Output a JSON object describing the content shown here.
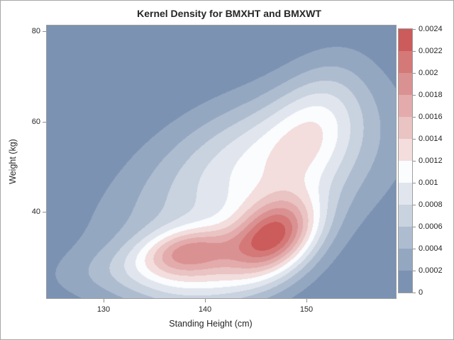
{
  "figure": {
    "background": "#ffffff",
    "border_color": "#a7a7a7",
    "text_color": "#262626",
    "axis_line_color": "#8f8f8f"
  },
  "chart_data": {
    "type": "filled_contour",
    "subtype": "bivariate_kernel_density",
    "title": "Kernel Density for BMXHT and BMXWT",
    "xlabel": "Standing Height (cm)",
    "ylabel": "Weight (kg)",
    "x_range": [
      124.4,
      158.8
    ],
    "y_range": [
      20.9,
      81.3
    ],
    "x_ticks": [
      130,
      140,
      150
    ],
    "x_tick_labels": [
      "130",
      "140",
      "150"
    ],
    "y_ticks": [
      40,
      60,
      80
    ],
    "y_tick_labels": [
      "40",
      "60",
      "80"
    ],
    "grid": false,
    "legend_position": "right",
    "levels": [
      0,
      0.0002,
      0.0004,
      0.0006,
      0.0008,
      0.001,
      0.0012,
      0.0014,
      0.0016,
      0.0018,
      0.002,
      0.0022,
      0.0024
    ],
    "level_labels": [
      "0",
      "0.0002",
      "0.0004",
      "0.0006",
      "0.0008",
      "0.001",
      "0.0012",
      "0.0014",
      "0.0016",
      "0.0018",
      "0.002",
      "0.0022",
      "0.0024"
    ],
    "band_colors": [
      "#7B92B2",
      "#94A7C1",
      "#AEBCD0",
      "#C9D2DF",
      "#E1E6EE",
      "#FAFCFE",
      "#F3DDDD",
      "#EAC3C3",
      "#E3ABAB",
      "#DA9191",
      "#D47878",
      "#CC5B5B"
    ],
    "peak_density": 0.0023,
    "peak_location": {
      "height_cm": 147,
      "weight_kg": 34.5
    },
    "secondary_mode": {
      "height_cm": 138.5,
      "weight_kg": 31.5
    },
    "density_model": {
      "form": "bivariate_gaussian_mixture",
      "components": [
        {
          "amplitude": 0.00178,
          "mean_x": 146.8,
          "mean_y": 34.5,
          "sigma_x": 3.0,
          "sigma_y": 6.0,
          "rho": 0.3
        },
        {
          "amplitude": 0.00095,
          "mean_x": 138.4,
          "mean_y": 31.6,
          "sigma_x": 3.2,
          "sigma_y": 3.6,
          "rho": 0.2
        },
        {
          "amplitude": 0.00075,
          "mean_x": 144.0,
          "mean_y": 44.0,
          "sigma_x": 9.5,
          "sigma_y": 13.5,
          "rho": 0.5
        },
        {
          "amplitude": 0.00055,
          "mean_x": 151.0,
          "mean_y": 60.0,
          "sigma_x": 3.4,
          "sigma_y": 10.0,
          "rho": 0.35
        },
        {
          "amplitude": 0.00021,
          "mean_x": 132.5,
          "mean_y": 27.5,
          "sigma_x": 5.5,
          "sigma_y": 4.0,
          "rho": 0.3
        },
        {
          "amplitude": 0.00075,
          "mean_x": 139.5,
          "mean_y": 25.5,
          "sigma_x": 5.0,
          "sigma_y": 5.5,
          "rho": 0.1
        },
        {
          "amplitude": 0.0004,
          "mean_x": 145.5,
          "mean_y": 55.0,
          "sigma_x": 6.5,
          "sigma_y": 9.0,
          "rho": 0.35
        }
      ]
    }
  }
}
